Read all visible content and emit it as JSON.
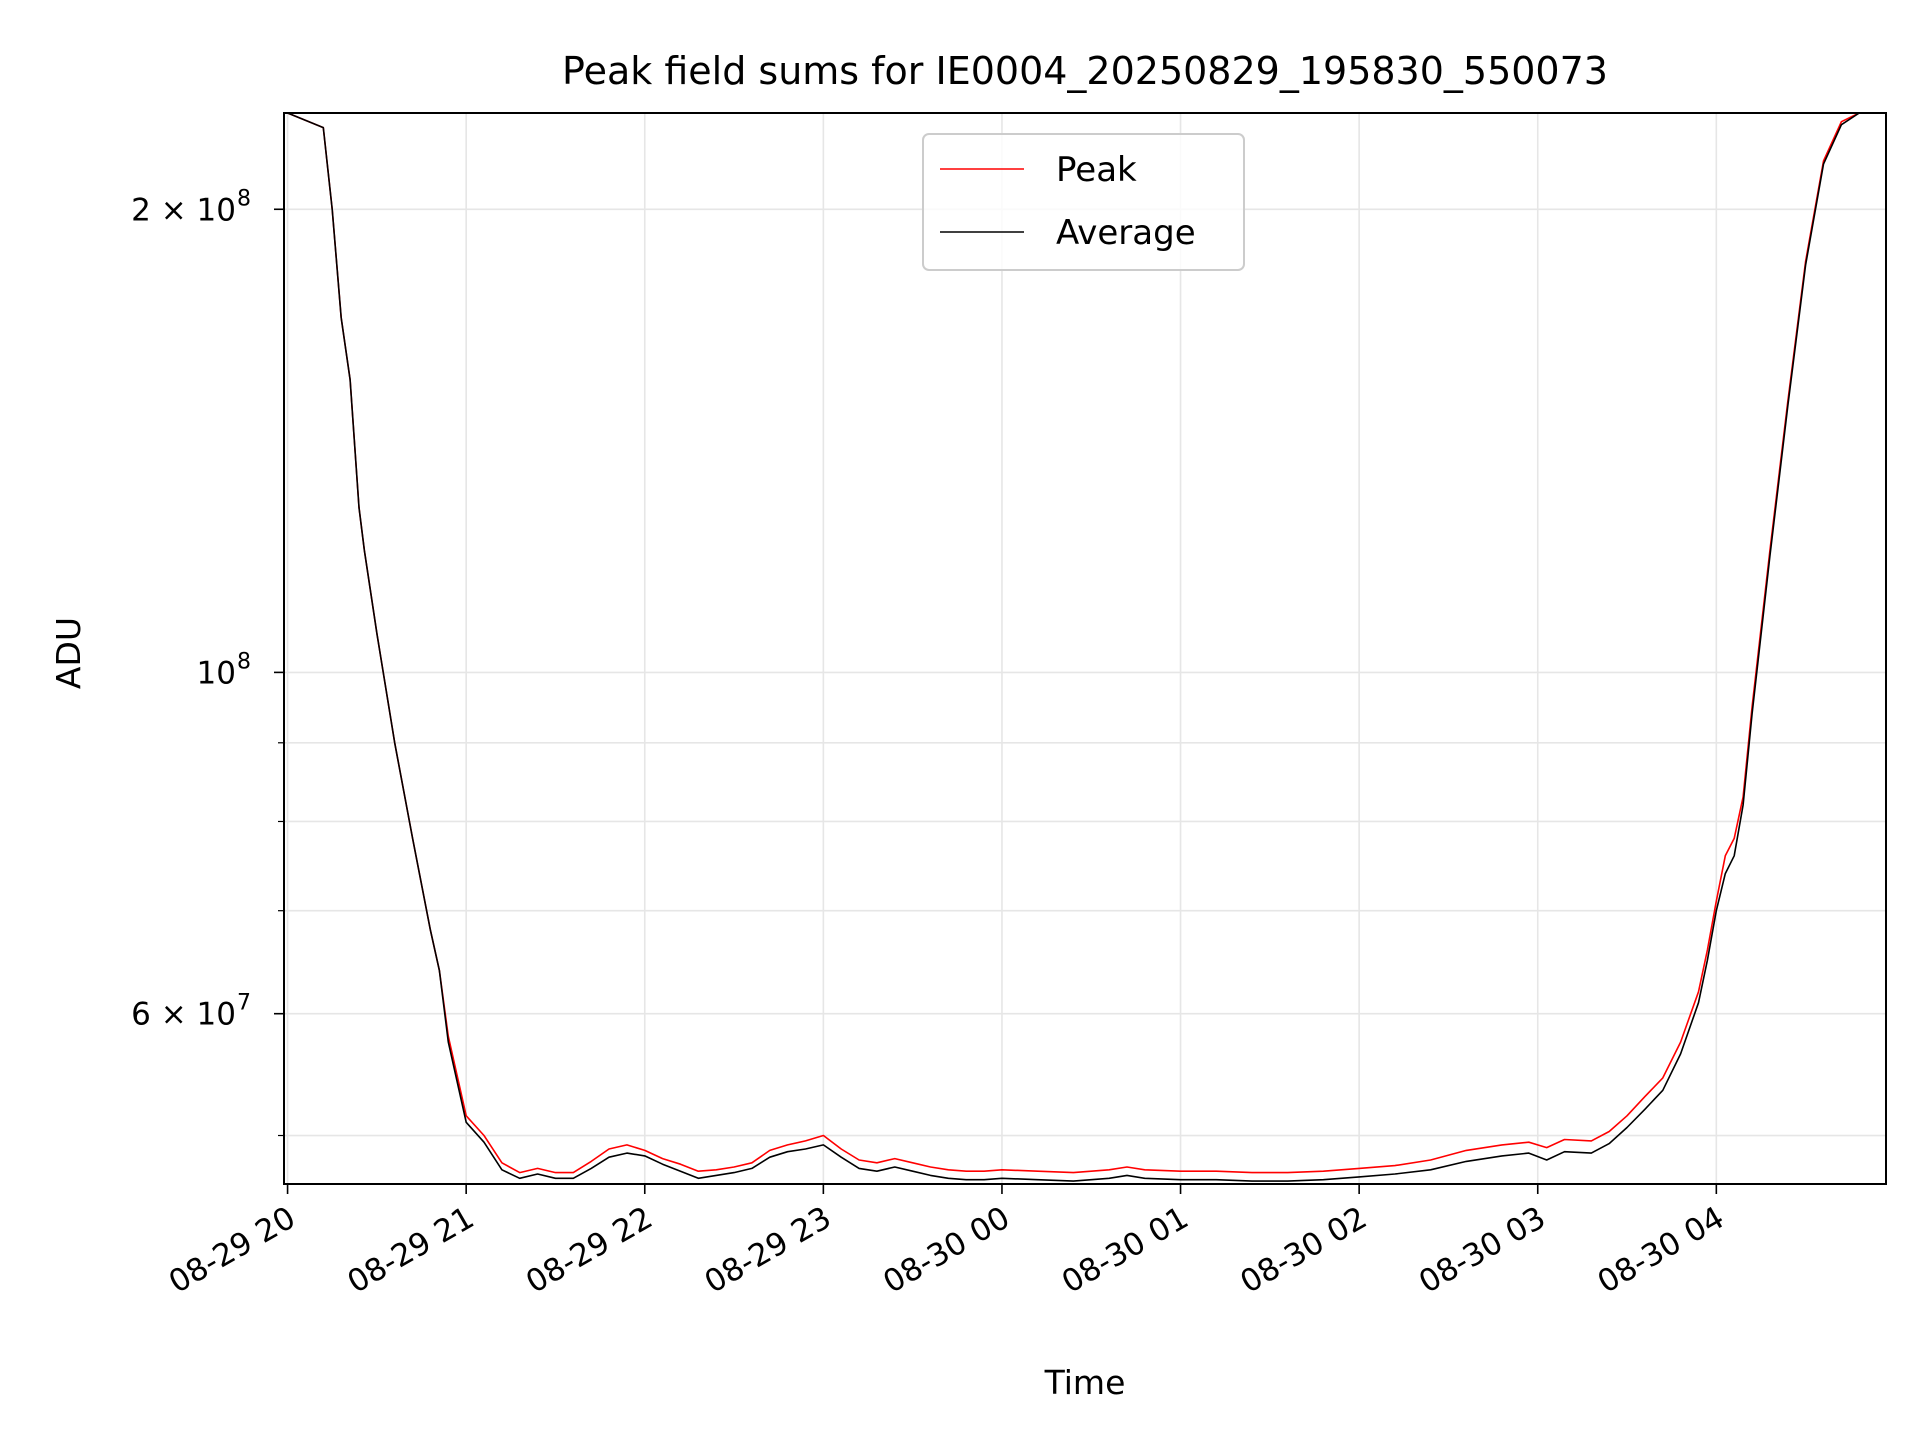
{
  "chart_data": {
    "type": "line",
    "title": "Peak field sums for IE0004_20250829_195830_550073",
    "xlabel": "Time",
    "ylabel": "ADU",
    "yscale": "log",
    "grid": true,
    "legend_position": "top-center",
    "x_unit": "hours since 08-29 20:00",
    "xlim": [
      -0.02,
      8.95
    ],
    "ylim": [
      46500000,
      231000000
    ],
    "x_ticks": [
      {
        "value": 0,
        "label": "08-29 20"
      },
      {
        "value": 1,
        "label": "08-29 21"
      },
      {
        "value": 2,
        "label": "08-29 22"
      },
      {
        "value": 3,
        "label": "08-29 23"
      },
      {
        "value": 4,
        "label": "08-30 00"
      },
      {
        "value": 5,
        "label": "08-30 01"
      },
      {
        "value": 6,
        "label": "08-30 02"
      },
      {
        "value": 7,
        "label": "08-30 03"
      },
      {
        "value": 8,
        "label": "08-30 04"
      }
    ],
    "y_major_ticks": [
      {
        "value": 200000000,
        "base": "2 × 10",
        "exp": "8"
      },
      {
        "value": 100000000,
        "base": "10",
        "exp": "8"
      },
      {
        "value": 60000000,
        "base": "6 × 10",
        "exp": "7"
      }
    ],
    "y_minor_ticks": [
      50000000,
      70000000,
      80000000,
      90000000
    ],
    "series": [
      {
        "name": "Peak",
        "color": "#ff0000",
        "x": [
          0.0,
          0.2,
          0.25,
          0.3,
          0.35,
          0.4,
          0.43,
          0.5,
          0.6,
          0.7,
          0.8,
          0.85,
          0.9,
          1.0,
          1.1,
          1.2,
          1.3,
          1.4,
          1.5,
          1.6,
          1.7,
          1.8,
          1.9,
          2.0,
          2.1,
          2.2,
          2.3,
          2.4,
          2.5,
          2.6,
          2.7,
          2.8,
          2.9,
          3.0,
          3.1,
          3.2,
          3.3,
          3.4,
          3.5,
          3.6,
          3.7,
          3.8,
          3.9,
          4.0,
          4.2,
          4.4,
          4.6,
          4.7,
          4.8,
          5.0,
          5.2,
          5.4,
          5.6,
          5.8,
          6.0,
          6.2,
          6.4,
          6.6,
          6.8,
          6.95,
          7.05,
          7.15,
          7.3,
          7.4,
          7.5,
          7.6,
          7.7,
          7.8,
          7.9,
          7.95,
          8.0,
          8.05,
          8.1,
          8.15,
          8.2,
          8.3,
          8.4,
          8.5,
          8.6,
          8.7,
          8.8,
          8.95
        ],
        "values": [
          231000000,
          226000000,
          200000000,
          170000000,
          155000000,
          128000000,
          120000000,
          106000000,
          90000000,
          78000000,
          68000000,
          64000000,
          58000000,
          51500000,
          50000000,
          48000000,
          47300000,
          47600000,
          47300000,
          47300000,
          48100000,
          49000000,
          49300000,
          48900000,
          48300000,
          47900000,
          47400000,
          47500000,
          47700000,
          48000000,
          48900000,
          49300000,
          49600000,
          50000000,
          49000000,
          48200000,
          48000000,
          48300000,
          48000000,
          47700000,
          47500000,
          47400000,
          47400000,
          47500000,
          47400000,
          47300000,
          47500000,
          47700000,
          47500000,
          47400000,
          47400000,
          47300000,
          47300000,
          47400000,
          47600000,
          47800000,
          48200000,
          48900000,
          49300000,
          49500000,
          49100000,
          49700000,
          49600000,
          50300000,
          51500000,
          53000000,
          54500000,
          57500000,
          62000000,
          66000000,
          71000000,
          76000000,
          78000000,
          83000000,
          95000000,
          120000000,
          150000000,
          185000000,
          215000000,
          228000000,
          231000000,
          231000000
        ]
      },
      {
        "name": "Average",
        "color": "#000000",
        "x": [
          0.0,
          0.2,
          0.25,
          0.3,
          0.35,
          0.4,
          0.43,
          0.5,
          0.6,
          0.7,
          0.8,
          0.85,
          0.9,
          1.0,
          1.1,
          1.2,
          1.3,
          1.4,
          1.5,
          1.6,
          1.7,
          1.8,
          1.9,
          2.0,
          2.1,
          2.2,
          2.3,
          2.4,
          2.5,
          2.6,
          2.7,
          2.8,
          2.9,
          3.0,
          3.1,
          3.2,
          3.3,
          3.4,
          3.5,
          3.6,
          3.7,
          3.8,
          3.9,
          4.0,
          4.2,
          4.4,
          4.6,
          4.7,
          4.8,
          5.0,
          5.2,
          5.4,
          5.6,
          5.8,
          6.0,
          6.2,
          6.4,
          6.6,
          6.8,
          6.95,
          7.05,
          7.15,
          7.3,
          7.4,
          7.5,
          7.6,
          7.7,
          7.8,
          7.9,
          7.95,
          8.0,
          8.05,
          8.1,
          8.15,
          8.2,
          8.3,
          8.4,
          8.5,
          8.6,
          8.7,
          8.8,
          8.95
        ],
        "values": [
          231000000,
          226000000,
          200000000,
          170000000,
          155000000,
          128000000,
          120000000,
          106000000,
          90000000,
          78000000,
          68000000,
          64000000,
          57500000,
          51000000,
          49500000,
          47500000,
          46900000,
          47200000,
          46900000,
          46900000,
          47600000,
          48400000,
          48700000,
          48500000,
          47900000,
          47400000,
          46900000,
          47100000,
          47300000,
          47600000,
          48400000,
          48800000,
          49000000,
          49300000,
          48400000,
          47600000,
          47400000,
          47700000,
          47400000,
          47100000,
          46900000,
          46800000,
          46800000,
          46900000,
          46800000,
          46700000,
          46900000,
          47100000,
          46900000,
          46800000,
          46800000,
          46700000,
          46700000,
          46800000,
          47000000,
          47200000,
          47500000,
          48100000,
          48500000,
          48700000,
          48200000,
          48800000,
          48700000,
          49400000,
          50600000,
          52000000,
          53500000,
          56500000,
          61000000,
          65000000,
          70000000,
          74000000,
          76000000,
          82000000,
          94000000,
          119000000,
          149000000,
          184000000,
          214000000,
          227000000,
          231000000,
          231000000
        ]
      }
    ]
  }
}
